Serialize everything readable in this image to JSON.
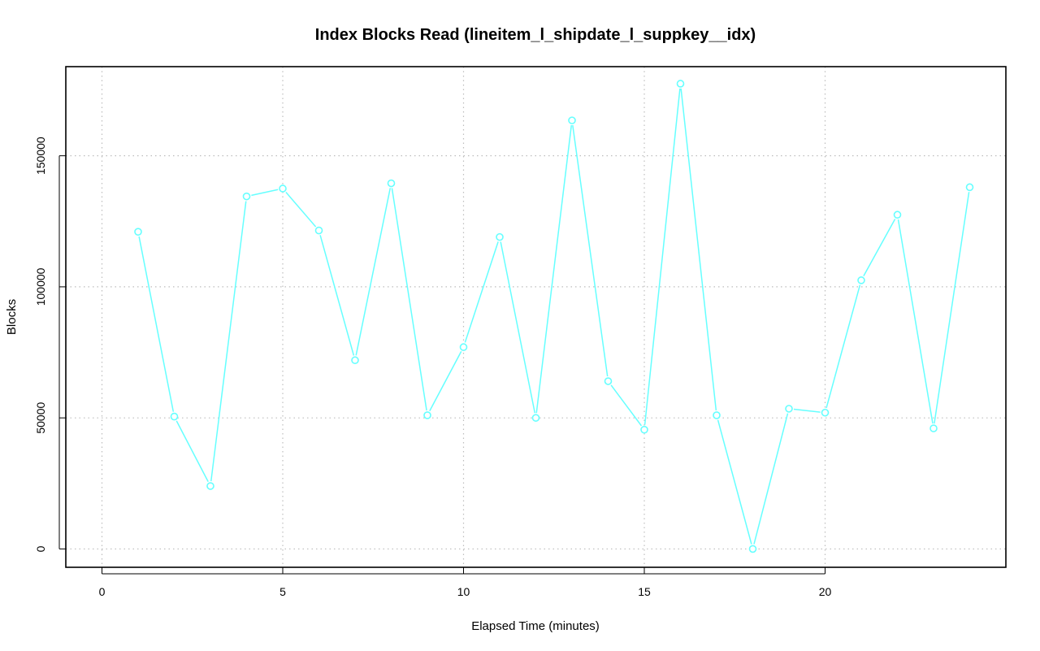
{
  "chart_data": {
    "type": "line",
    "title": "Index Blocks Read (lineitem_l_shipdate_l_suppkey__idx)",
    "xlabel": "Elapsed Time (minutes)",
    "ylabel": "Blocks",
    "xlim": [
      -1,
      25
    ],
    "ylim": [
      -7000,
      184000
    ],
    "x_ticks": [
      0,
      5,
      10,
      15,
      20
    ],
    "y_ticks": [
      0,
      50000,
      100000,
      150000
    ],
    "grid": true,
    "series": [
      {
        "color": "#66FFFF",
        "marker": "open-circle",
        "x": [
          1,
          2,
          3,
          4,
          5,
          6,
          7,
          8,
          9,
          10,
          11,
          12,
          13,
          14,
          15,
          16,
          17,
          18,
          19,
          20,
          21,
          22,
          23,
          24
        ],
        "y": [
          121000,
          50500,
          24000,
          134500,
          137500,
          121500,
          72000,
          139500,
          51000,
          77000,
          119000,
          50000,
          163500,
          64000,
          45500,
          177500,
          51000,
          0,
          53500,
          52000,
          102500,
          127500,
          46000,
          138000
        ]
      }
    ]
  }
}
